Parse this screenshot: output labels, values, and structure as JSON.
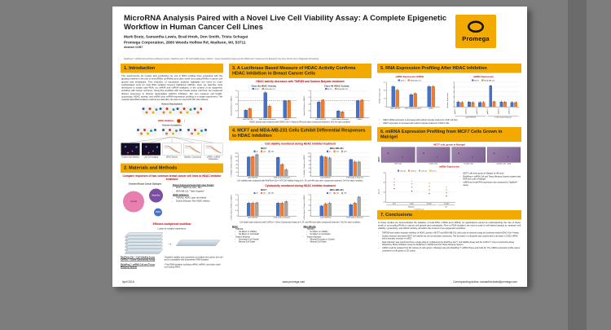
{
  "header": {
    "title": "MicroRNA Analysis Paired with a Novel Live Cell Viability Assay: A Complete Epigenetic Workflow in Human Cancer Cell Lines",
    "authors": "Mark Bratz, Samantha Lewis, Brad Hook, Don Smith, Trista Schagat",
    "affiliation": "Promega Corporation, 2800 Woods Hollow Rd, Madison, WI, 53711",
    "abstract": "Abstract #1987",
    "disclaimer": "ReliaPrep™ miRNA Cell and Tissue Miniprep System, RealTime-Glo™ MT Cell Viability Assay, CellTox™ Green Cytotoxicity Assay and the HDAC-Glo™ Assay are For Research Use Only. Not for Use in Diagnostic Procedures.",
    "logo_text": "Promega"
  },
  "sections": [
    "1.  Introduction",
    "2.  Materials and Methods",
    "3.  A Luciferase Based Measure of HDAC Activity Confirms HDAC Inhibition in Breast Cancer Cells",
    "4.  MCF7 and MDA-MB-231 Cells Exhibit Differential Responses to HDAC Inhibition",
    "5.  RNA Expression Profiling After HDAC Inhibition",
    "6.  miRNA Expression Profiling from MCF7 Cells Grown in Matrigel",
    "7.  Conclusions"
  ],
  "intro": {
    "paragraph": "The requirements for nucleic acid purification for use in RNA profiling have expanded with the growing interest in the role of microRNAs (miRNAs) and other small non-coding RNAs in cancer cell growth and metastasis. This evolution of expression analysis highlights the need for more sophisticated tools for total RNA isolation beyond traditional mRNAs. Here we describe tools developed to isolate total RNA, for mRNA and miRNA analyses, in the context of an epigenetic workflow with cancer cell lines. Using this workflow with two breast cancer cell lines, we measured distinct responses to histone deacetylase (HDAC) inhibition. We can measure cell health, cytotoxicity, HDAC activity, and mRNA plus miRNA expression profiling in a single experiment. The manual total RNA isolation method we describe can also be used with 3D cell cultures.",
    "diagram": {
      "top_label": "Histone Deacetylation",
      "inhibitor_label": "HDAC Inhibitors",
      "bottom_label": "Histone Acetylation",
      "panels": [
        {
          "label": "Nucleic Acid Staining",
          "kind": "img"
        },
        {
          "label": "Live-Cell Imaging",
          "kind": "img"
        },
        {
          "label": "HDAC Activity",
          "kind": "plot"
        },
        {
          "label": "Viability / Cytotoxicity",
          "kind": "plot"
        },
        {
          "label": "mRNA + miRNA Expression",
          "kind": "plot"
        }
      ]
    }
  },
  "methods": {
    "head1": "Compare responses of two common breast cancer cell lines to HDAC inhibitor treatment",
    "subtypes_title": "Common Breast Cancer Subtypes",
    "circle_labels": [
      "Luminal",
      "Basal-like",
      "HER2"
    ],
    "lines_head": "Breast Adenocarcinoma Cell Lines Tested:",
    "lines": [
      "MCF7: HER2 low, ER+, PR+",
      "MDA-MB-231: \"Triple Negative\""
    ],
    "inhib_head": "HDAC Inhibitors:",
    "inhibs": [
      "TMP269: HDAC class IIa inhibitor",
      "Sodium Butyrate: Pan HDAC inhibitor"
    ],
    "head2": "Efficient multiplexed workflow",
    "plate_note": "1 plate for multiple experiments.",
    "wf": [
      {
        "label": "RealTime-Glo™ Cell Viability Assay  CellTox™ Green Cytotoxicity Assay",
        "desc": "Enables viability and cytotoxicity at multiple time points; live-cell and is compatible with downstream RNA isolation"
      },
      {
        "label": "ReliaPrep™ miRNA Cell and Tissue Miniprep System",
        "desc": "Total RNA isolation including mRNA, miRNA, and other small non-coding RNAs"
      }
    ]
  },
  "results3": {
    "subhead": "HDAC activity decreases with TMP269 and Sodium Butyrate treatment",
    "caption": "HDAC activity was measured with HDAC-Glo™ Assay at 48 hours after compound treatment. N=3 for each condition."
  },
  "results4": {
    "subhead_viability": "Cell viability monitored during HDAC inhibitor treatment",
    "caption_viability": "Cell viability was measured with RealTime-Glo™ MT Cell Viability Assay at 4, 24, and 48 hours after compound treatment. N=3 for each condition.",
    "subhead_cytotox": "Cytotoxicity monitored during HDAC inhibitor treatment",
    "caption_cytotox": "Cell death was measured with CellTox™ Green Cytotoxicity Assay at 4, 24, and 48 hours after compound treatment. N=3 for each condition.",
    "summary": {
      "mcf7_title": "MCF7:",
      "mda_title": "MDA-MB-231:",
      "mcf7": [
        {
          "label": "TMP269:",
          "items": [
            "No Effect on Viability",
            "No Effect on Cell Death"
          ]
        },
        {
          "label": "Sodium Butyrate:",
          "items": [
            "Decreased Cell Growth",
            "Minimal Cell Death"
          ]
        }
      ],
      "mda": [
        {
          "label": "TMP269:",
          "items": [
            "No Effect on Viability",
            "No Effect on Cell Death"
          ]
        },
        {
          "label": "Sodium Butyrate:",
          "items": [
            "Minimal Decrease in Growth",
            "Minimal Cell Death"
          ]
        }
      ]
    }
  },
  "results5": {
    "head_mrna": "mRNA Expression (CDK2)",
    "head_mirna": "miRNA Expression",
    "bullets": [
      "CDK2 mRNA expression is decreased with sodium butyrate treatment in both cell lines",
      "miR27 expression is increased with sodium butyrate treatment in MCF7 cells"
    ]
  },
  "results6": {
    "subhead_images": "MCF7 cells grown in Matrigel",
    "row_label": "MCF7",
    "image_labels": [
      "500 Cells",
      "2,000 Cells",
      "10,000 Cells",
      "10,000 Cells +NaB"
    ],
    "subhead_chart": "miRNA Expression",
    "bullets": [
      "MCF7 cells were grown in Matrigel for 48 hours",
      "ReliaPrep™ miRNA Cell and Tissue Miniprep System isolates total RNA from cells in Matrigel",
      "miRNA and small RNA expression was measured by TaqMan® Assay"
    ]
  },
  "conclusions": {
    "paragraph": "In these studies we demonstrated the isolation of total RNA, mRNA and miRNA, for applications aimed at understanding the role of these small or non-coding RNAs in cancer cell growth and metastasis. Prior to RNA isolation, we used a suite of cell-based assays to measure cell viability, cytotoxicity, and HDAC activity, all within the context of an epigenetic workflow.",
    "bullets": [
      "TMP269 and sodium butyrate inhibition of HDAC activity in MCF7 and MDA-MB-231 cells could be detected using the luciferase-based HDAC-Glo™ Assay.",
      "Sodium butyrate decreased MCF7 cell viability but did not stimulate cytotoxicity. This decrease in cell growth was coupled with a decrease in CDK2 mRNA and a dramatic increase in miR27.",
      "Data collection was maximized from a single plate by multiplexing the RealTime-Glo™ Cell Viability Assay and the CellTox™ Green Cytotoxicity Assay followed by RNA purification using the ReliaPrep™ miRNA Cell and Tissue Miniprep System.",
      "miRNA could be isolated from 3D cultures of cells grown in Matrigel using the ReliaPrep™ miRNA Tissue and Cells Kit. The miRNA expression profile varied compared to cells grown in 2D culture."
    ]
  },
  "footer": {
    "date": "April 2016",
    "website": "www.promega.com",
    "author": "Corresponding author: samantha.lewis@promega.com"
  },
  "colors": {
    "brand_amber": "#f2a900",
    "heading_red": "#c00000",
    "series_blue": "#4472c4",
    "series_orange": "#ed7d31",
    "series_gray": "#a5a5a5",
    "series_yellow": "#ffc000"
  },
  "chart_data": [
    {
      "type": "bar",
      "title": "Class IIa HDAC Activity",
      "ylabel": "Activity Relative to DMSO",
      "categories": [
        "1μM TMP269",
        "5mM Sodium Butyrate",
        "DMSO"
      ],
      "series": [
        {
          "name": "MCF7",
          "color": "#4472c4",
          "values": [
            0.45,
            1.5,
            1.0
          ]
        },
        {
          "name": "MDA-MB-231",
          "color": "#ed7d31",
          "values": [
            0.55,
            0.7,
            1.0
          ]
        }
      ],
      "ylim": [
        0,
        1.6
      ],
      "yticks": [
        0,
        0.4,
        0.8,
        1.2,
        1.6
      ],
      "refline": 1.0
    },
    {
      "type": "bar",
      "title": "Class I/II HDAC Activity",
      "ylabel": "Activity Relative to DMSO",
      "categories": [
        "1μM TMP269",
        "5mM Sodium Butyrate",
        "DMSO"
      ],
      "series": [
        {
          "name": "MCF7",
          "color": "#4472c4",
          "values": [
            0.95,
            0.4,
            1.0
          ]
        },
        {
          "name": "MDA-MB-231",
          "color": "#ed7d31",
          "values": [
            1.05,
            0.35,
            1.05
          ]
        }
      ],
      "ylim": [
        0,
        1.6
      ],
      "yticks": [
        0,
        0.4,
        0.8,
        1.2,
        1.6
      ],
      "refline": 1.0
    },
    {
      "type": "bar",
      "title": "MCF7",
      "ylabel": "% Viability, Relative to DMSO",
      "categories": [
        "1μM TMP269",
        "5mM Sodium Butyrate"
      ],
      "series": [
        {
          "name": "4h",
          "color": "#4472c4",
          "values": [
            100,
            98
          ]
        },
        {
          "name": "24h",
          "color": "#ed7d31",
          "values": [
            102,
            62
          ]
        },
        {
          "name": "48h",
          "color": "#a5a5a5",
          "values": [
            113,
            35
          ]
        }
      ],
      "ylim": [
        0,
        120
      ],
      "yticks": [
        0,
        20,
        40,
        60,
        80,
        100,
        120
      ]
    },
    {
      "type": "bar",
      "title": "MDA-MB-231",
      "ylabel": "% Viability, Relative to DMSO",
      "categories": [
        "1μM TMP269",
        "5mM Sodium Butyrate"
      ],
      "series": [
        {
          "name": "4h",
          "color": "#4472c4",
          "values": [
            106,
            88
          ]
        },
        {
          "name": "24h",
          "color": "#ed7d31",
          "values": [
            100,
            76
          ]
        },
        {
          "name": "48h",
          "color": "#a5a5a5",
          "values": [
            96,
            75
          ]
        }
      ],
      "ylim": [
        0,
        120
      ],
      "yticks": [
        0,
        20,
        40,
        60,
        80,
        100,
        120
      ]
    },
    {
      "type": "bar",
      "title": "MCF7",
      "ylabel": "CellTox Signal, Relative to DMSO",
      "categories": [
        "1μM TMP269",
        "5mM Sodium Butyrate"
      ],
      "series": [
        {
          "name": "4h",
          "color": "#4472c4",
          "values": [
            1.0,
            1.0
          ]
        },
        {
          "name": "24h",
          "color": "#ed7d31",
          "values": [
            1.0,
            1.0
          ]
        },
        {
          "name": "48h",
          "color": "#a5a5a5",
          "values": [
            1.02,
            1.12
          ]
        }
      ],
      "ylim": [
        0,
        1.6
      ],
      "yticks": [
        0,
        0.4,
        0.8,
        1.2,
        1.6
      ]
    },
    {
      "type": "bar",
      "title": "MDA-MB-231",
      "ylabel": "CellTox Signal, Relative to DMSO",
      "categories": [
        "1μM TMP269",
        "5mM Sodium Butyrate"
      ],
      "series": [
        {
          "name": "4h",
          "color": "#4472c4",
          "values": [
            0.78,
            0.88
          ]
        },
        {
          "name": "24h",
          "color": "#ed7d31",
          "values": [
            0.95,
            1.0
          ]
        },
        {
          "name": "48h",
          "color": "#a5a5a5",
          "values": [
            1.0,
            1.45
          ]
        }
      ],
      "ylim": [
        0,
        1.6
      ],
      "yticks": [
        0,
        0.4,
        0.8,
        1.2,
        1.6
      ]
    },
    {
      "type": "bar",
      "title": "",
      "ylabel": "Relative Expression",
      "categories": [
        "1μM TMP269",
        "5mM Sodium Butyrate",
        "DMSO"
      ],
      "series": [
        {
          "name": "MCF7",
          "color": "#4472c4",
          "values": [
            1.0,
            0.6,
            1.0
          ]
        },
        {
          "name": "MDA-MB-231",
          "color": "#ed7d31",
          "values": [
            0.82,
            0.65,
            1.0
          ]
        }
      ],
      "ylim": [
        0,
        1.2
      ],
      "yticks": [
        0,
        0.4,
        0.8,
        1.2
      ]
    },
    {
      "type": "bar",
      "title": "",
      "ylabel": "Relative Expression",
      "rotate_x": true,
      "categories": [
        "miR-27",
        "miR-16",
        "miR-23",
        "miR-27",
        "miR-16",
        "miR-23"
      ],
      "group_labels": [
        {
          "label": "1μM TMP269",
          "span": 3
        },
        {
          "label": "5 mM Sodium Butyrate",
          "span": 3
        }
      ],
      "series": [
        {
          "name": "MCF7",
          "color": "#4472c4",
          "values": [
            1.0,
            0.95,
            0.9,
            4.3,
            1.0,
            0.9
          ]
        },
        {
          "name": "MDA-MB-231",
          "color": "#ed7d31",
          "values": [
            0.9,
            0.85,
            0.9,
            1.05,
            0.95,
            0.85
          ]
        }
      ],
      "ylim": [
        0,
        5
      ],
      "yticks": [
        0,
        1,
        2,
        3,
        4,
        5
      ]
    },
    {
      "type": "scatter",
      "title": "",
      "ylabel": "Avg Ct",
      "xlabel": "# Cells/Tissue",
      "categories": [
        "500",
        "2,000",
        "10,000",
        "10,000"
      ],
      "group_labels": [
        {
          "label": "Matrigel",
          "span": 3
        },
        {
          "label": "2D",
          "span": 1
        }
      ],
      "series": [
        {
          "name": "miR-16",
          "color": "#4472c4",
          "values": [
            27.5,
            26.5,
            25.5,
            24.5
          ]
        },
        {
          "name": "miR-21",
          "color": "#ed7d31",
          "values": [
            29.0,
            28.2,
            27.0,
            25.8
          ]
        },
        {
          "name": "miR-24",
          "color": "#a5a5a5",
          "values": [
            30.2,
            29.4,
            28.4,
            27.0
          ]
        },
        {
          "name": "let-7a",
          "color": "#ffc000",
          "values": [
            31.5,
            30.6,
            29.6,
            28.2
          ]
        }
      ],
      "ylim": [
        22,
        34
      ],
      "yticks": [
        22,
        26,
        30,
        34
      ]
    }
  ]
}
